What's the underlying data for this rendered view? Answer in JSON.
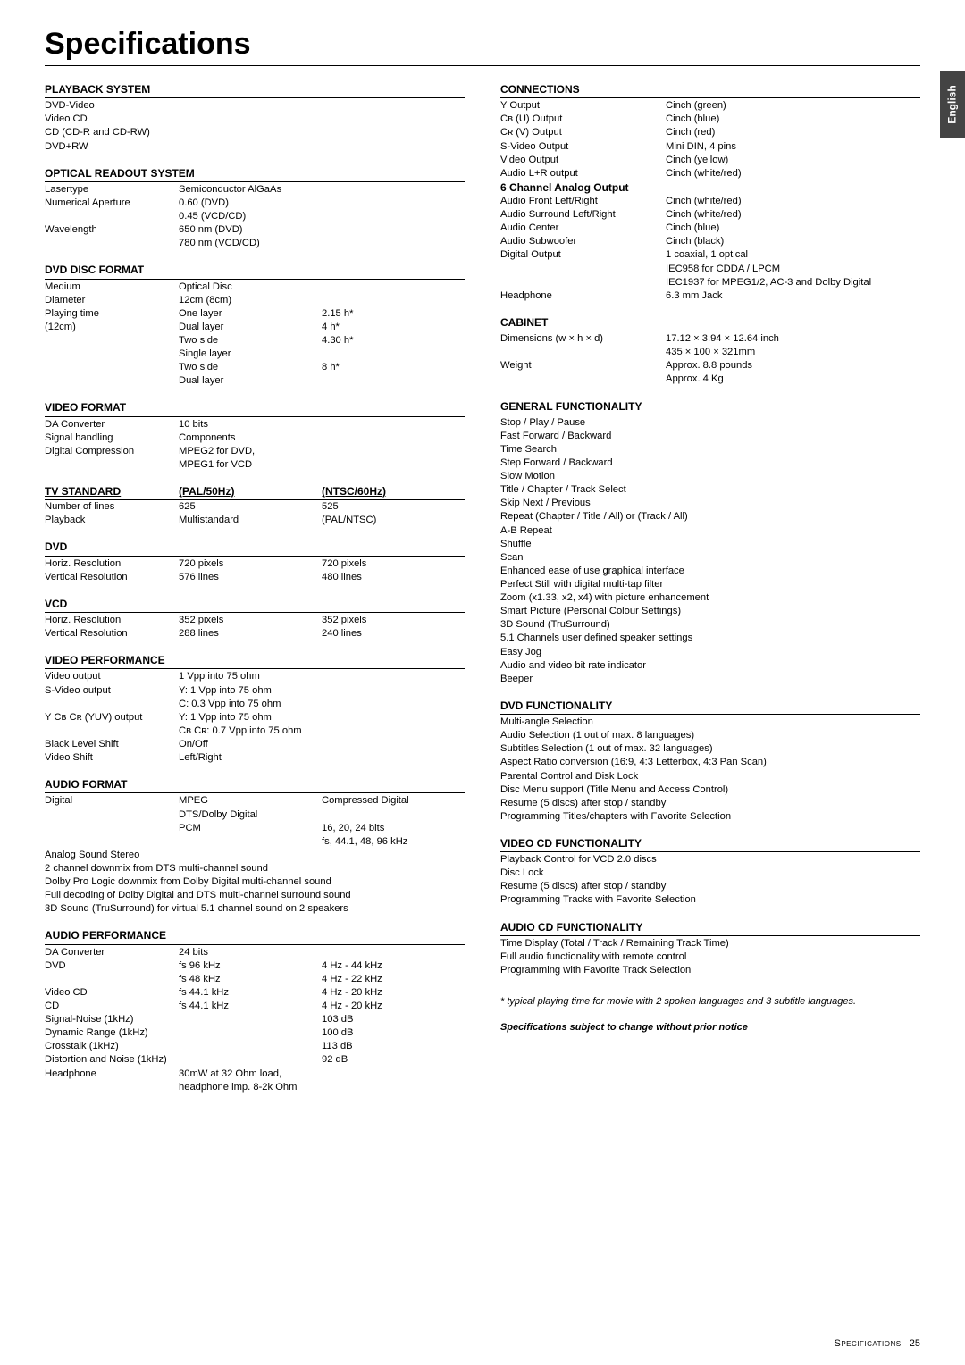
{
  "page": {
    "title": "Specifications",
    "side_tab": "English",
    "footer_label": "Specifications",
    "footer_page": "25"
  },
  "left": {
    "playback_system": {
      "title": "PLAYBACK SYSTEM",
      "items": [
        "DVD-Video",
        "Video CD",
        "CD (CD-R and CD-RW)",
        "DVD+RW"
      ]
    },
    "optical": {
      "title": "OPTICAL READOUT SYSTEM",
      "rows": [
        [
          "Lasertype",
          "Semiconductor AlGaAs",
          ""
        ],
        [
          "Numerical Aperture",
          "0.60 (DVD)",
          ""
        ],
        [
          "",
          "0.45 (VCD/CD)",
          ""
        ],
        [
          "Wavelength",
          "650 nm (DVD)",
          ""
        ],
        [
          "",
          "780 nm (VCD/CD)",
          ""
        ]
      ]
    },
    "disc_format": {
      "title": "DVD DISC FORMAT",
      "rows": [
        [
          "Medium",
          "Optical Disc",
          ""
        ],
        [
          "Diameter",
          "12cm (8cm)",
          ""
        ],
        [
          "Playing time",
          "One layer",
          "2.15 h*"
        ],
        [
          "(12cm)",
          "Dual layer",
          "4 h*"
        ],
        [
          "",
          "Two side",
          "4.30 h*"
        ],
        [
          "",
          "Single layer",
          ""
        ],
        [
          "",
          "Two side",
          "8 h*"
        ],
        [
          "",
          "Dual layer",
          ""
        ]
      ]
    },
    "video_format": {
      "title": "VIDEO FORMAT",
      "rows": [
        [
          "DA Converter",
          "10 bits",
          ""
        ],
        [
          "Signal handling",
          "Components",
          ""
        ],
        [
          "Digital Compression",
          "MPEG2 for DVD,",
          ""
        ],
        [
          "",
          "MPEG1 for VCD",
          ""
        ]
      ]
    },
    "tv_standard": {
      "h1": "TV STANDARD",
      "h2": "(PAL/50Hz)",
      "h3": "(NTSC/60Hz)",
      "rows": [
        [
          "Number of lines",
          "625",
          "525"
        ],
        [
          "Playback",
          "Multistandard",
          "(PAL/NTSC)"
        ]
      ]
    },
    "dvd": {
      "title": "DVD",
      "rows": [
        [
          "Horiz. Resolution",
          "720 pixels",
          "720 pixels"
        ],
        [
          "Vertical Resolution",
          "576 lines",
          "480 lines"
        ]
      ]
    },
    "vcd": {
      "title": "VCD",
      "rows": [
        [
          "Horiz. Resolution",
          "352 pixels",
          "352 pixels"
        ],
        [
          "Vertical Resolution",
          "288 lines",
          "240 lines"
        ]
      ]
    },
    "video_perf": {
      "title": "VIDEO PERFORMANCE",
      "rows": [
        [
          "Video output",
          "1 Vpp into 75 ohm",
          ""
        ],
        [
          "S-Video output",
          "Y: 1 Vpp into 75 ohm",
          ""
        ],
        [
          "",
          "C: 0.3 Vpp into 75 ohm",
          ""
        ],
        [
          "Y Cʙ Cʀ (YUV) output",
          "Y: 1 Vpp into 75 ohm",
          ""
        ],
        [
          "",
          "Cʙ Cʀ: 0.7 Vpp into 75 ohm",
          ""
        ],
        [
          "Black Level Shift",
          "On/Off",
          ""
        ],
        [
          "Video Shift",
          "Left/Right",
          ""
        ]
      ]
    },
    "audio_format": {
      "title": "AUDIO FORMAT",
      "rows": [
        [
          "Digital",
          "MPEG",
          "Compressed Digital"
        ],
        [
          "",
          "DTS/Dolby Digital",
          ""
        ],
        [
          "",
          "PCM",
          "16, 20, 24 bits"
        ],
        [
          "",
          "",
          "fs, 44.1, 48, 96 kHz"
        ]
      ],
      "notes": [
        "Analog Sound Stereo",
        "2 channel downmix from DTS multi-channel sound",
        "Dolby Pro Logic downmix from Dolby Digital multi-channel sound",
        "Full decoding of Dolby Digital and DTS multi-channel surround sound",
        "3D Sound (TruSurround) for virtual 5.1 channel sound on 2 speakers"
      ]
    },
    "audio_perf": {
      "title": "AUDIO PERFORMANCE",
      "rows": [
        [
          "DA Converter",
          "24 bits",
          ""
        ],
        [
          "DVD",
          "fs 96 kHz",
          "4 Hz - 44 kHz"
        ],
        [
          "",
          "fs 48 kHz",
          "4 Hz - 22 kHz"
        ],
        [
          "Video CD",
          "fs 44.1 kHz",
          "4 Hz - 20 kHz"
        ],
        [
          "CD",
          "fs 44.1 kHz",
          "4 Hz - 20 kHz"
        ],
        [
          "Signal-Noise (1kHz)",
          "",
          "103 dB"
        ],
        [
          "Dynamic Range (1kHz)",
          "",
          "100 dB"
        ],
        [
          "Crosstalk (1kHz)",
          "",
          "113 dB"
        ],
        [
          "Distortion and Noise (1kHz)",
          "",
          "92 dB"
        ],
        [
          "Headphone",
          "30mW at 32 Ohm load,",
          ""
        ],
        [
          "",
          "headphone imp. 8-2k Ohm",
          ""
        ]
      ]
    }
  },
  "right": {
    "connections": {
      "title": "CONNECTIONS",
      "rows": [
        [
          "Y Output",
          "Cinch (green)"
        ],
        [
          "Cʙ (U) Output",
          "Cinch (blue)"
        ],
        [
          "Cʀ (V) Output",
          "Cinch (red)"
        ],
        [
          "S-Video Output",
          "Mini DIN, 4 pins"
        ],
        [
          "Video Output",
          "Cinch (yellow)"
        ],
        [
          "Audio L+R output",
          "Cinch (white/red)"
        ]
      ],
      "sub": "6 Channel Analog Output",
      "rows2": [
        [
          "Audio Front Left/Right",
          "Cinch (white/red)"
        ],
        [
          "Audio Surround Left/Right",
          "Cinch (white/red)"
        ],
        [
          "Audio Center",
          "Cinch (blue)"
        ],
        [
          "Audio Subwoofer",
          "Cinch (black)"
        ],
        [
          "Digital Output",
          "1 coaxial, 1 optical"
        ],
        [
          "",
          "IEC958 for CDDA / LPCM"
        ],
        [
          "",
          "IEC1937 for MPEG1/2, AC-3 and Dolby Digital"
        ],
        [
          "Headphone",
          "6.3 mm Jack"
        ]
      ]
    },
    "cabinet": {
      "title": "CABINET",
      "rows": [
        [
          "Dimensions (w × h × d)",
          "17.12 × 3.94 × 12.64 inch"
        ],
        [
          "",
          "435 × 100 × 321mm"
        ],
        [
          "Weight",
          "Approx. 8.8 pounds"
        ],
        [
          "",
          "Approx. 4 Kg"
        ]
      ]
    },
    "general": {
      "title": "GENERAL FUNCTIONALITY",
      "items": [
        "Stop / Play / Pause",
        "Fast Forward / Backward",
        "Time Search",
        "Step Forward / Backward",
        "Slow Motion",
        "Title / Chapter / Track Select",
        "Skip Next / Previous",
        "Repeat (Chapter / Title / All) or (Track / All)",
        "A-B Repeat",
        "Shuffle",
        "Scan",
        "Enhanced ease of use graphical interface",
        "Perfect Still with digital multi-tap filter",
        "Zoom (x1.33, x2, x4) with picture enhancement",
        "Smart Picture (Personal Colour Settings)",
        "3D Sound (TruSurround)",
        "5.1 Channels user defined speaker settings",
        "Easy Jog",
        "Audio and video bit rate indicator",
        "Beeper"
      ]
    },
    "dvd_func": {
      "title": "DVD FUNCTIONALITY",
      "items": [
        "Multi-angle Selection",
        "Audio Selection (1 out of max. 8 languages)",
        "Subtitles Selection (1 out of max. 32 languages)",
        "Aspect Ratio conversion (16:9, 4:3 Letterbox, 4:3 Pan Scan)",
        "Parental Control and Disk Lock",
        "Disc Menu support (Title Menu and Access Control)",
        "Resume (5 discs) after stop / standby",
        "Programming Titles/chapters with Favorite Selection"
      ]
    },
    "vcd_func": {
      "title": "VIDEO CD FUNCTIONALITY",
      "items": [
        "Playback Control for VCD 2.0 discs",
        "Disc Lock",
        "Resume (5 discs) after stop / standby",
        "Programming Tracks with Favorite Selection"
      ]
    },
    "acd_func": {
      "title": "AUDIO CD FUNCTIONALITY",
      "items": [
        "Time Display (Total / Track / Remaining Track Time)",
        "Full audio functionality with remote control",
        "Programming with Favorite Track Selection"
      ]
    },
    "footnote": "*   typical playing time for movie with 2 spoken languages and 3 subtitle languages.",
    "footnote2": "Specifications subject to change without prior notice"
  }
}
